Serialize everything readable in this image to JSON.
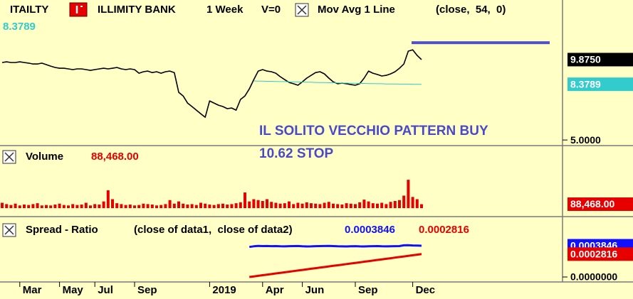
{
  "chart_data": [
    {
      "type": "line",
      "symbol": "ITAILTY",
      "period": "1 Week",
      "volume_flag": "V=0",
      "series": [
        {
          "name": "ILLIMITY BANK",
          "color": "#000000",
          "last_value_label": "9.8750",
          "values": [
            9.7,
            9.74,
            9.7,
            9.7,
            9.74,
            9.7,
            9.66,
            9.61,
            9.61,
            9.66,
            9.57,
            9.48,
            9.4,
            9.35,
            9.35,
            9.31,
            9.27,
            9.31,
            9.31,
            9.27,
            9.22,
            9.27,
            9.31,
            9.35,
            9.31,
            9.35,
            9.4,
            9.31,
            9.27,
            9.31,
            9.27,
            9.05,
            9.14,
            9.18,
            9.09,
            9.14,
            9.05,
            9.14,
            9.18,
            9.09,
            7.89,
            7.67,
            7.24,
            7.03,
            6.81,
            6.59,
            6.38,
            7.37,
            7.24,
            7.11,
            7.03,
            6.9,
            6.94,
            6.81,
            7.46,
            7.67,
            8.1,
            8.66,
            9.18,
            9.27,
            9.18,
            9.14,
            9.05,
            8.84,
            8.66,
            8.49,
            8.41,
            8.32,
            8.53,
            8.75,
            8.92,
            9.09,
            9.14,
            9.01,
            8.75,
            8.53,
            8.41,
            8.45,
            8.41,
            8.36,
            8.32,
            8.41,
            8.75,
            9.18,
            9.05,
            8.97,
            8.88,
            8.92,
            9.01,
            9.14,
            9.35,
            9.61,
            10.39,
            10.47,
            10.13,
            9.875
          ]
        },
        {
          "name": "Mov Avg 1 Line",
          "params": "(close,  54,  0)",
          "color": "#33cccc",
          "values": [
            null,
            null,
            null,
            null,
            null,
            null,
            null,
            null,
            null,
            null,
            null,
            null,
            null,
            null,
            null,
            null,
            null,
            null,
            null,
            null,
            null,
            null,
            null,
            null,
            null,
            null,
            null,
            null,
            null,
            null,
            null,
            null,
            null,
            null,
            null,
            null,
            null,
            null,
            null,
            null,
            null,
            null,
            null,
            null,
            null,
            null,
            null,
            null,
            null,
            null,
            null,
            null,
            null,
            null,
            null,
            null,
            null,
            8.58,
            8.57,
            8.57,
            8.56,
            8.56,
            8.55,
            8.54,
            8.54,
            8.53,
            8.52,
            8.52,
            8.51,
            8.5,
            8.5,
            8.49,
            8.48,
            8.48,
            8.47,
            8.47,
            8.46,
            8.45,
            8.45,
            8.44,
            8.44,
            8.43,
            8.43,
            8.42,
            8.42,
            8.41,
            8.41,
            8.4,
            8.4,
            8.4,
            8.39,
            8.39,
            8.39,
            8.38,
            8.38,
            8.3789
          ]
        }
      ],
      "hline": {
        "value": 10.9,
        "color": "#5050c8"
      },
      "annotations": [
        "IL SOLITO VECCHIO PATTERN BUY",
        "10.62 STOP"
      ],
      "annotation_color": "#4a4ac8",
      "ylim": [
        4.66,
        13.49
      ],
      "yticks": [
        {
          "value": 5,
          "label": "5.0000"
        }
      ]
    },
    {
      "type": "bar",
      "title": "Volume",
      "color": "#e60000",
      "last_value_label": "88,468.00",
      "values": [
        120000,
        90000,
        70000,
        100000,
        60000,
        80000,
        70000,
        90000,
        110000,
        60000,
        70000,
        60000,
        80000,
        100000,
        70000,
        60000,
        90000,
        70000,
        80000,
        120000,
        60000,
        90000,
        80000,
        150000,
        400000,
        200000,
        110000,
        90000,
        70000,
        80000,
        60000,
        70000,
        100000,
        90000,
        80000,
        60000,
        70000,
        90000,
        180000,
        100000,
        150000,
        100000,
        80000,
        90000,
        70000,
        120000,
        100000,
        80000,
        70000,
        90000,
        100000,
        80000,
        90000,
        110000,
        130000,
        350000,
        150000,
        200000,
        180000,
        160000,
        200000,
        140000,
        120000,
        100000,
        110000,
        150000,
        90000,
        120000,
        100000,
        130000,
        110000,
        100000,
        90000,
        120000,
        140000,
        100000,
        90000,
        80000,
        110000,
        100000,
        90000,
        130000,
        190000,
        150000,
        110000,
        100000,
        120000,
        90000,
        140000,
        160000,
        180000,
        280000,
        635000,
        250000,
        200000,
        88468
      ],
      "ylim": [
        -190000,
        1400000
      ]
    },
    {
      "type": "line",
      "title": "Spread - Ratio",
      "subtitle": "(close of data1,  close of data2)",
      "categories": [
        null,
        null,
        null,
        null,
        "Mar",
        null,
        null,
        null,
        null,
        null,
        null,
        null,
        null,
        "May",
        null,
        null,
        null,
        null,
        null,
        null,
        null,
        "Jul",
        null,
        null,
        null,
        null,
        null,
        null,
        null,
        null,
        "Sep",
        null,
        null,
        null,
        null,
        null,
        null,
        null,
        null,
        null,
        null,
        null,
        null,
        null,
        null,
        null,
        null,
        "2019",
        null,
        null,
        null,
        null,
        null,
        null,
        null,
        null,
        null,
        null,
        null,
        "Apr",
        null,
        null,
        null,
        null,
        null,
        null,
        null,
        null,
        "Jun",
        null,
        null,
        null,
        null,
        null,
        null,
        null,
        null,
        null,
        null,
        null,
        "Sep",
        null,
        null,
        null,
        null,
        null,
        null,
        null,
        null,
        null,
        null,
        null,
        null,
        "Dec",
        null,
        null
      ],
      "series": [
        {
          "name": "close of data1",
          "color": "#1010ff",
          "values": [
            null,
            null,
            null,
            null,
            null,
            null,
            null,
            null,
            null,
            null,
            null,
            null,
            null,
            null,
            null,
            null,
            null,
            null,
            null,
            null,
            null,
            null,
            null,
            null,
            null,
            null,
            null,
            null,
            null,
            null,
            null,
            null,
            null,
            null,
            null,
            null,
            null,
            null,
            null,
            null,
            null,
            null,
            null,
            null,
            null,
            null,
            null,
            null,
            null,
            null,
            null,
            null,
            null,
            null,
            null,
            null,
            0.00037,
            0.000378,
            0.000382,
            0.00038,
            0.000381,
            0.000379,
            0.00038,
            0.000378,
            0.000377,
            0.000379,
            0.00038,
            0.000381,
            0.000378,
            0.000376,
            0.000377,
            0.000379,
            0.00038,
            0.000381,
            0.000382,
            0.00038,
            0.000378,
            0.000377,
            0.000376,
            0.000378,
            0.000379,
            0.000377,
            0.000376,
            0.000378,
            0.000379,
            0.00038,
            0.000378,
            0.000377,
            0.000378,
            0.000379,
            0.00038,
            0.00039,
            0.000392,
            0.000388,
            0.000386,
            0.0003846
          ]
        },
        {
          "name": "close of data2",
          "color": "#e60000",
          "values": [
            null,
            null,
            null,
            null,
            null,
            null,
            null,
            null,
            null,
            null,
            null,
            null,
            null,
            null,
            null,
            null,
            null,
            null,
            null,
            null,
            null,
            null,
            null,
            null,
            null,
            null,
            null,
            null,
            null,
            null,
            null,
            null,
            null,
            null,
            null,
            null,
            null,
            null,
            null,
            null,
            null,
            null,
            null,
            null,
            null,
            null,
            null,
            null,
            null,
            null,
            null,
            null,
            null,
            null,
            null,
            null,
            0,
            7.2e-06,
            1.44e-05,
            2.17e-05,
            2.89e-05,
            3.61e-05,
            4.33e-05,
            5.05e-05,
            5.78e-05,
            6.5e-05,
            7.22e-05,
            7.94e-05,
            8.66e-05,
            9.39e-05,
            0.0001011,
            0.0001083,
            0.0001155,
            0.0001227,
            0.00013,
            0.0001372,
            0.0001444,
            0.0001516,
            0.0001588,
            0.0001661,
            0.0001733,
            0.0001805,
            0.0001877,
            0.0001949,
            0.0002022,
            0.0002094,
            0.0002166,
            0.0002238,
            0.000231,
            0.0002383,
            0.0002455,
            0.0002527,
            0.0002599,
            0.0002671,
            0.0002744,
            0.0002816
          ]
        }
      ],
      "ylim": [
        -4.37e-05,
        0.000743
      ],
      "yticks": [
        {
          "value": 0,
          "label": "0.0000000"
        }
      ]
    }
  ]
}
